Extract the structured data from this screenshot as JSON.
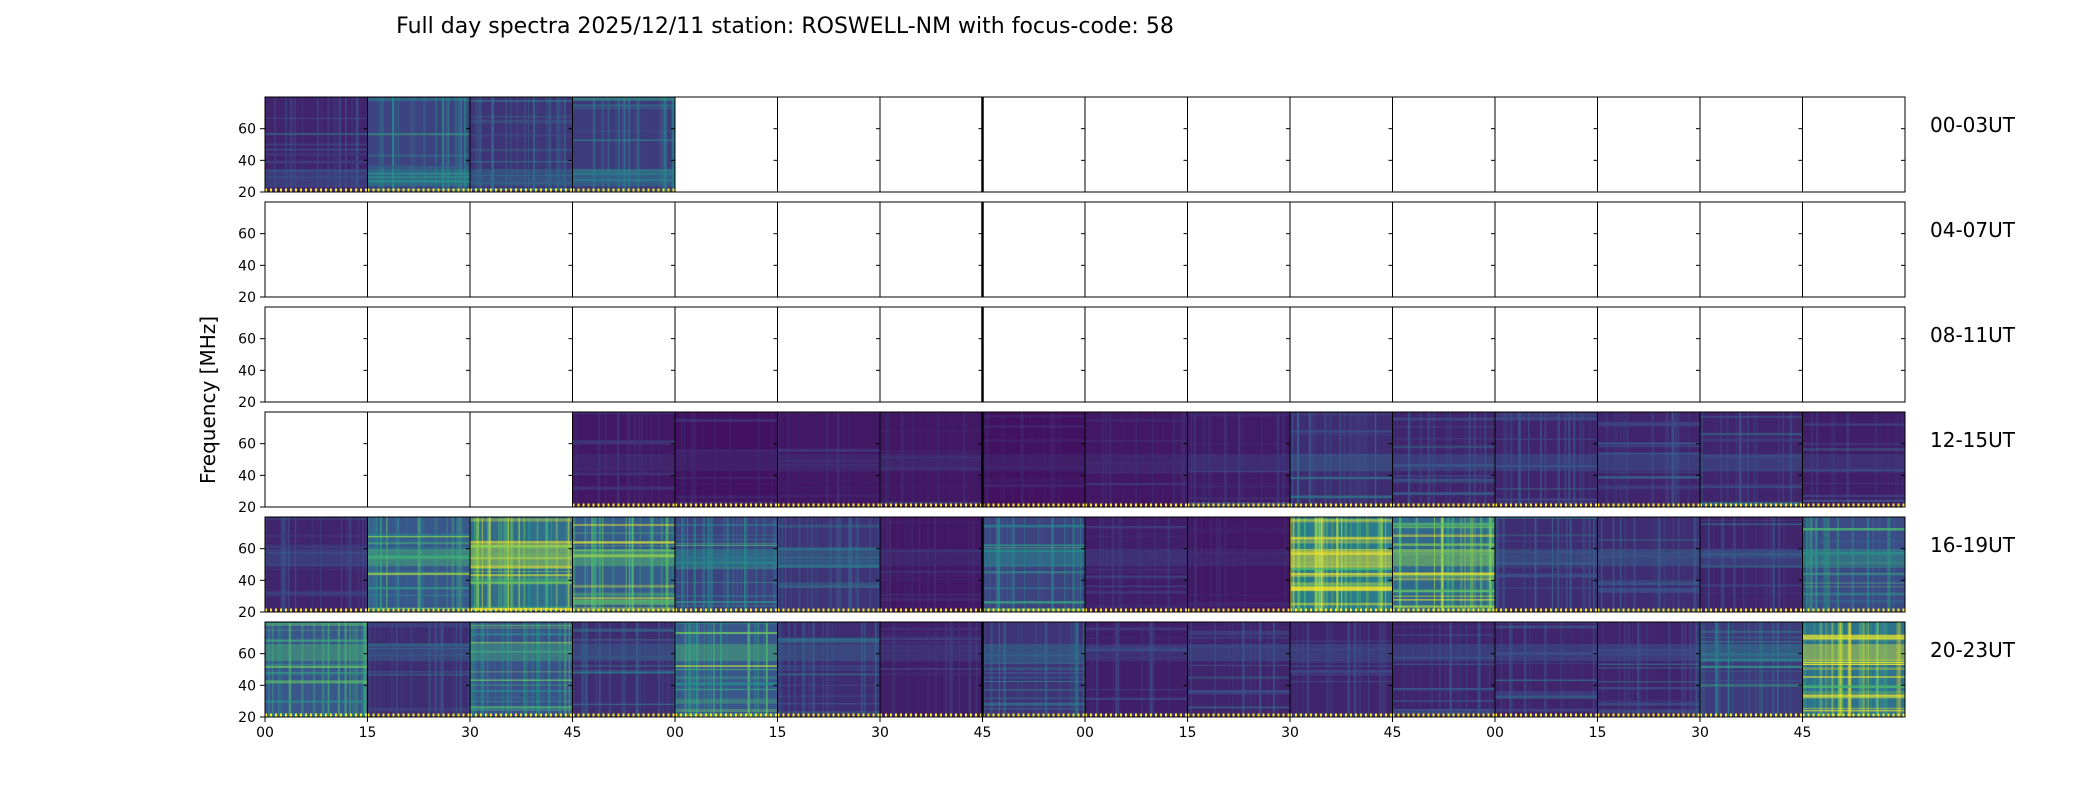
{
  "chart_data": {
    "type": "heatmap",
    "title": "Full day spectra 2025/12/11 station: ROSWELL-NM with focus-code: 58",
    "ylabel": "Frequency [MHz]",
    "yticks": [
      "20",
      "40",
      "60"
    ],
    "ylim": [
      20,
      80
    ],
    "xticks": [
      "00",
      "15",
      "30",
      "45",
      "00",
      "15",
      "30",
      "45",
      "00",
      "15",
      "30",
      "45",
      "00",
      "15",
      "30",
      "45"
    ],
    "colormap": [
      "#440154",
      "#3b528b",
      "#21918c",
      "#5ec962",
      "#fde725"
    ],
    "rows": [
      {
        "label": "00-03UT",
        "intensity": [
          0.25,
          0.45,
          0.35,
          0.4,
          null,
          null,
          null,
          null,
          null,
          null,
          null,
          null,
          null,
          null,
          null,
          null
        ]
      },
      {
        "label": "04-07UT",
        "intensity": [
          null,
          null,
          null,
          null,
          null,
          null,
          null,
          null,
          null,
          null,
          null,
          null,
          null,
          null,
          null,
          null
        ]
      },
      {
        "label": "08-11UT",
        "intensity": [
          null,
          null,
          null,
          null,
          null,
          null,
          null,
          null,
          null,
          null,
          null,
          null,
          null,
          null,
          null,
          null
        ]
      },
      {
        "label": "12-15UT",
        "intensity": [
          null,
          null,
          null,
          0.15,
          0.12,
          0.15,
          0.15,
          0.12,
          0.15,
          0.18,
          0.3,
          0.25,
          0.25,
          0.25,
          0.25,
          0.2
        ]
      },
      {
        "label": "16-19UT",
        "intensity": [
          0.25,
          0.6,
          0.8,
          0.65,
          0.45,
          0.35,
          0.15,
          0.45,
          0.2,
          0.15,
          0.92,
          0.75,
          0.3,
          0.3,
          0.25,
          0.5
        ]
      },
      {
        "label": "20-23UT",
        "intensity": [
          0.6,
          0.3,
          0.55,
          0.3,
          0.6,
          0.3,
          0.2,
          0.35,
          0.2,
          0.25,
          0.25,
          0.25,
          0.25,
          0.25,
          0.4,
          0.85
        ]
      }
    ]
  }
}
